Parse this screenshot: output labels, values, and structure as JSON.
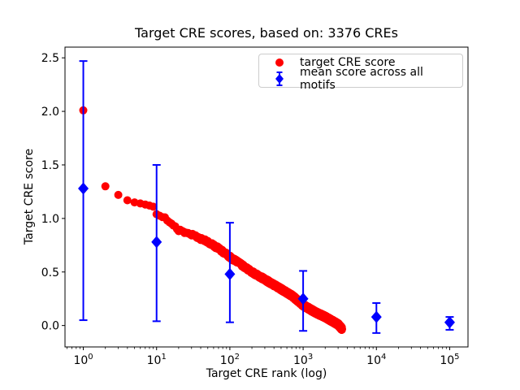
{
  "chart_data": {
    "type": "scatter",
    "title": "Target CRE scores, based on: 3376 CREs",
    "xlabel": "Target CRE rank (log)",
    "ylabel": "Target CRE score",
    "x_scale": "log",
    "xlim_log10": [
      -0.25,
      5.25
    ],
    "ylim": [
      -0.2,
      2.6
    ],
    "x_major_tick_exponents": [
      0,
      1,
      2,
      3,
      4,
      5
    ],
    "x_tick_base": "10",
    "y_tick_labels": [
      "0.0",
      "0.5",
      "1.0",
      "1.5",
      "2.0",
      "2.5"
    ],
    "grid": false,
    "legend_position": "upper right",
    "legend_entries": [
      "target CRE score",
      "mean score across all motifs"
    ],
    "series": [
      {
        "name": "target CRE score",
        "color": "#ff0000",
        "marker": "circle",
        "total_points": 3376,
        "curve_anchors_rank_score": [
          [
            1,
            2.01
          ],
          [
            2,
            1.3
          ],
          [
            3,
            1.22
          ],
          [
            4,
            1.17
          ],
          [
            5,
            1.15
          ],
          [
            6,
            1.14
          ],
          [
            7,
            1.13
          ],
          [
            8,
            1.12
          ],
          [
            9,
            1.11
          ],
          [
            10,
            1.04
          ],
          [
            13,
            1.0
          ],
          [
            15,
            0.96
          ],
          [
            20,
            0.89
          ],
          [
            30,
            0.85
          ],
          [
            40,
            0.81
          ],
          [
            50,
            0.78
          ],
          [
            70,
            0.72
          ],
          [
            100,
            0.64
          ],
          [
            150,
            0.56
          ],
          [
            200,
            0.5
          ],
          [
            300,
            0.43
          ],
          [
            500,
            0.34
          ],
          [
            700,
            0.28
          ],
          [
            1000,
            0.19
          ],
          [
            1500,
            0.12
          ],
          [
            2000,
            0.08
          ],
          [
            3000,
            0.01
          ],
          [
            3376,
            -0.03
          ]
        ]
      },
      {
        "name": "mean score across all motifs",
        "color": "#0000ff",
        "marker": "diamond",
        "points": [
          {
            "rank": 1,
            "mean": 1.28,
            "lo": 0.05,
            "hi": 2.47
          },
          {
            "rank": 10,
            "mean": 0.78,
            "lo": 0.04,
            "hi": 1.5
          },
          {
            "rank": 100,
            "mean": 0.48,
            "lo": 0.03,
            "hi": 0.96
          },
          {
            "rank": 1000,
            "mean": 0.25,
            "lo": -0.05,
            "hi": 0.51
          },
          {
            "rank": 10000,
            "mean": 0.08,
            "lo": -0.07,
            "hi": 0.21
          },
          {
            "rank": 100000,
            "mean": 0.03,
            "lo": -0.04,
            "hi": 0.08
          }
        ]
      }
    ]
  },
  "colors": {
    "red": "#ff0000",
    "blue": "#0000ff",
    "text": "#000000",
    "spine": "#000000",
    "legend_border": "#cccccc",
    "background": "#ffffff"
  }
}
